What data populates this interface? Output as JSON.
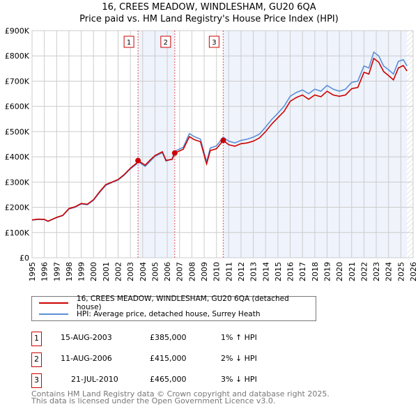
{
  "title": "16, CREES MEADOW, WINDLESHAM, GU20 6QA",
  "subtitle": "Price paid vs. HM Land Registry's House Price Index (HPI)",
  "chart_data": {
    "type": "line",
    "ylim": [
      0,
      900000
    ],
    "xlim": [
      1995,
      2026
    ],
    "yticks": [
      {
        "v": 0,
        "label": "£0"
      },
      {
        "v": 100000,
        "label": "£100K"
      },
      {
        "v": 200000,
        "label": "£200K"
      },
      {
        "v": 300000,
        "label": "£300K"
      },
      {
        "v": 400000,
        "label": "£400K"
      },
      {
        "v": 500000,
        "label": "£500K"
      },
      {
        "v": 600000,
        "label": "£600K"
      },
      {
        "v": 700000,
        "label": "£700K"
      },
      {
        "v": 800000,
        "label": "£800K"
      },
      {
        "v": 900000,
        "label": "£900K"
      }
    ],
    "xticks": [
      "1995",
      "1996",
      "1997",
      "1998",
      "1999",
      "2000",
      "2001",
      "2002",
      "2003",
      "2004",
      "2005",
      "2006",
      "2007",
      "2008",
      "2009",
      "2010",
      "2011",
      "2012",
      "2013",
      "2014",
      "2015",
      "2016",
      "2017",
      "2018",
      "2019",
      "2020",
      "2021",
      "2022",
      "2023",
      "2024",
      "2025",
      "2026"
    ],
    "series": [
      {
        "name": "16, CREES MEADOW, WINDLESHAM, GU20 6QA (detached house)",
        "color": "#cc0000",
        "x": [
          1995,
          1995.5,
          1996,
          1996.3,
          1997,
          1997.5,
          1998,
          1998.5,
          1999,
          1999.5,
          2000,
          2000.5,
          2001,
          2001.5,
          2002,
          2002.5,
          2003,
          2003.5,
          2003.62,
          2004.2,
          2004.6,
          2005,
          2005.6,
          2005.9,
          2006.4,
          2006.61,
          2007.3,
          2007.8,
          2008.2,
          2008.7,
          2009.2,
          2009.5,
          2010,
          2010.55,
          2011,
          2011.5,
          2012,
          2012.5,
          2013,
          2013.5,
          2014,
          2014.5,
          2015,
          2015.5,
          2016,
          2016.5,
          2017,
          2017.5,
          2018,
          2018.5,
          2019,
          2019.5,
          2020,
          2020.5,
          2021,
          2021.5,
          2022,
          2022.4,
          2022.8,
          2023.2,
          2023.6,
          2024,
          2024.4,
          2024.8,
          2025.2,
          2025.5
        ],
        "y": [
          150000,
          153000,
          152000,
          145000,
          160000,
          168000,
          195000,
          202000,
          215000,
          212000,
          230000,
          262000,
          290000,
          300000,
          310000,
          330000,
          355000,
          375000,
          385000,
          367000,
          387000,
          405000,
          420000,
          386000,
          390000,
          415000,
          430000,
          480000,
          468000,
          460000,
          372000,
          425000,
          432000,
          465000,
          448000,
          442000,
          452000,
          455000,
          462000,
          475000,
          500000,
          530000,
          555000,
          580000,
          620000,
          635000,
          645000,
          628000,
          645000,
          638000,
          660000,
          645000,
          640000,
          645000,
          670000,
          675000,
          735000,
          728000,
          790000,
          775000,
          738000,
          722000,
          705000,
          752000,
          762000,
          740000
        ]
      },
      {
        "name": "HPI: Average price, detached house, Surrey Heath",
        "color": "#5b8fd6",
        "x": [
          1995,
          1995.5,
          1996,
          1996.3,
          1997,
          1997.5,
          1998,
          1998.5,
          1999,
          1999.5,
          2000,
          2000.5,
          2001,
          2001.5,
          2002,
          2002.5,
          2003,
          2003.5,
          2003.62,
          2004.2,
          2004.6,
          2005,
          2005.6,
          2005.9,
          2006.4,
          2006.61,
          2007.3,
          2007.8,
          2008.2,
          2008.7,
          2009.2,
          2009.5,
          2010,
          2010.55,
          2011,
          2011.5,
          2012,
          2012.5,
          2013,
          2013.5,
          2014,
          2014.5,
          2015,
          2015.5,
          2016,
          2016.5,
          2017,
          2017.5,
          2018,
          2018.5,
          2019,
          2019.5,
          2020,
          2020.5,
          2021,
          2021.5,
          2022,
          2022.4,
          2022.8,
          2023.2,
          2023.6,
          2024,
          2024.4,
          2024.8,
          2025.2,
          2025.5
        ],
        "y": [
          149000,
          152000,
          151000,
          144000,
          159000,
          167000,
          193000,
          200000,
          213000,
          210000,
          228000,
          259000,
          287000,
          298000,
          308000,
          327000,
          352000,
          371000,
          381000,
          362000,
          382000,
          402000,
          416000,
          383000,
          392000,
          422000,
          438000,
          492000,
          480000,
          470000,
          380000,
          435000,
          443000,
          478000,
          462000,
          455000,
          465000,
          470000,
          478000,
          490000,
          518000,
          548000,
          573000,
          600000,
          640000,
          655000,
          665000,
          650000,
          668000,
          660000,
          683000,
          668000,
          660000,
          668000,
          695000,
          700000,
          760000,
          752000,
          815000,
          800000,
          760000,
          745000,
          728000,
          778000,
          785000,
          760000
        ]
      }
    ],
    "sales": [
      {
        "n": "1",
        "x": 2003.62,
        "y": 385000
      },
      {
        "n": "2",
        "x": 2006.61,
        "y": 415000
      },
      {
        "n": "3",
        "x": 2010.55,
        "y": 465000
      }
    ],
    "projection_start": 2025.5
  },
  "legend": {
    "red": "16, CREES MEADOW, WINDLESHAM, GU20 6QA (detached house)",
    "blue": "HPI: Average price, detached house, Surrey Heath"
  },
  "transactions": [
    {
      "n": "1",
      "date": "15-AUG-2003",
      "price": "£385,000",
      "hpi": "1% ↑ HPI"
    },
    {
      "n": "2",
      "date": "11-AUG-2006",
      "price": "£415,000",
      "hpi": "2% ↓ HPI"
    },
    {
      "n": "3",
      "date": "21-JUL-2010",
      "price": "£465,000",
      "hpi": "3% ↓ HPI"
    }
  ],
  "footer": {
    "line1": "Contains HM Land Registry data © Crown copyright and database right 2025.",
    "line2": "This data is licensed under the Open Government Licence v3.0."
  }
}
